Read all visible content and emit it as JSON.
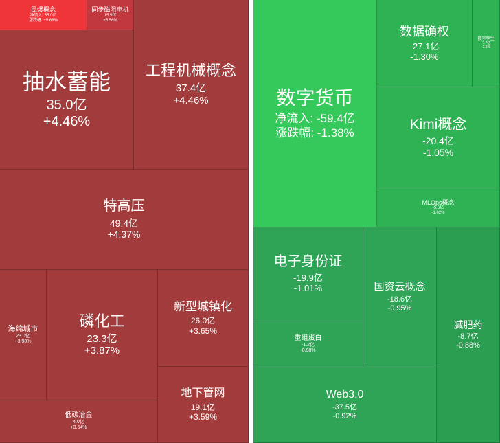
{
  "gainers": [
    {
      "name": "民爆概念",
      "inflow": "净流入: 35.0亿",
      "change": "涨跌幅: +5.68%",
      "color": "#f0353a"
    },
    {
      "name": "同步磁阻电机",
      "inflow": "15.5亿",
      "change": "+5.56%",
      "color": "#c2383f"
    },
    {
      "name": "抽水蓄能",
      "inflow": "35.0亿",
      "change": "+4.46%",
      "color": "#a23c3c"
    },
    {
      "name": "工程机械概念",
      "inflow": "37.4亿",
      "change": "+4.46%",
      "color": "#a23c3c"
    },
    {
      "name": "特高压",
      "inflow": "49.4亿",
      "change": "+4.37%",
      "color": "#a23c3c"
    },
    {
      "name": "海绵城市",
      "inflow": "23.0亿",
      "change": "+3.98%",
      "color": "#a23c3c"
    },
    {
      "name": "磷化工",
      "inflow": "23.3亿",
      "change": "+3.87%",
      "color": "#a23c3c"
    },
    {
      "name": "新型城镇化",
      "inflow": "26.0亿",
      "change": "+3.65%",
      "color": "#a23c3c"
    },
    {
      "name": "低碳冶金",
      "inflow": "4.0亿",
      "change": "+3.64%",
      "color": "#a23c3c"
    },
    {
      "name": "地下管网",
      "inflow": "19.1亿",
      "change": "+3.59%",
      "color": "#a23c3c"
    }
  ],
  "losers": [
    {
      "name": "数字货币",
      "inflow": "净流入: -59.4亿",
      "change": "涨跌幅: -1.38%",
      "color": "#34c95a"
    },
    {
      "name": "数据确权",
      "inflow": "-27.1亿",
      "change": "-1.30%",
      "color": "#2eb254"
    },
    {
      "name": "数字孪生",
      "inflow": "-7.7亿",
      "change": "-1.1%",
      "color": "#2eb254"
    },
    {
      "name": "Kimi概念",
      "inflow": "-20.4亿",
      "change": "-1.05%",
      "color": "#2eb254"
    },
    {
      "name": "MLOps概念",
      "inflow": "-5.6亿",
      "change": "-1.02%",
      "color": "#2eb254"
    },
    {
      "name": "电子身份证",
      "inflow": "-19.9亿",
      "change": "-1.01%",
      "color": "#2fa457"
    },
    {
      "name": "国资云概念",
      "inflow": "-18.6亿",
      "change": "-0.95%",
      "color": "#2fa457"
    },
    {
      "name": "减肥药",
      "inflow": "-8.7亿",
      "change": "-0.88%",
      "color": "#2b9e52"
    },
    {
      "name": "重组蛋白",
      "inflow": "-1.2亿",
      "change": "-0.98%",
      "color": "#2fa457"
    },
    {
      "name": "Web3.0",
      "inflow": "-37.5亿",
      "change": "-0.92%",
      "color": "#2fa457"
    }
  ]
}
